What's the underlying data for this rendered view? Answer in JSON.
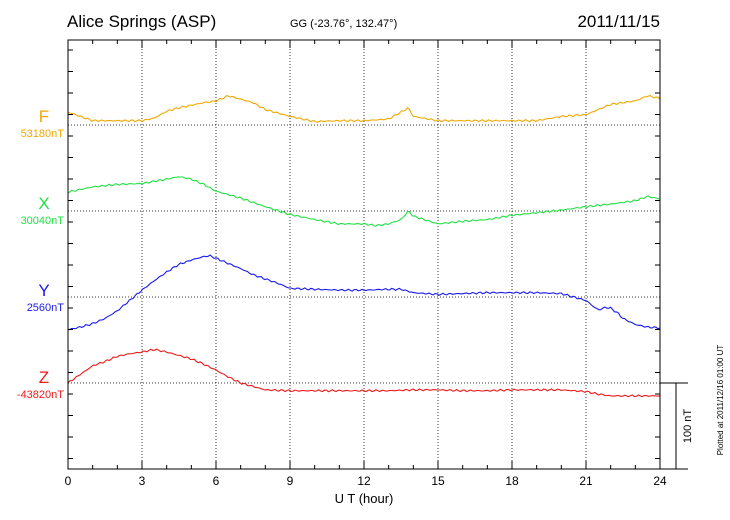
{
  "chart_data": {
    "type": "line",
    "title": "Alice Springs (ASP)",
    "subtitle": "GG (-23.76°, 132.47°)",
    "date": "2011/11/15",
    "xlabel": "U T (hour)",
    "xlim": [
      0,
      24
    ],
    "xticks": [
      "0",
      "3",
      "6",
      "9",
      "12",
      "15",
      "18",
      "21",
      "24"
    ],
    "grid": true,
    "scale_bar": {
      "label": "100 nT",
      "value_nT": 100
    },
    "footnote": "Plotted at 2011/12/16 01:00 UT",
    "series": [
      {
        "name": "F",
        "baseline_label": "53180nT",
        "baseline_nT": 53180,
        "color": "#f0a800",
        "x": [
          0,
          0.5,
          1,
          2,
          3,
          3.5,
          4,
          4.5,
          5,
          5.5,
          6,
          6.5,
          7,
          7.5,
          8,
          9,
          10,
          11,
          12,
          13,
          13.5,
          13.8,
          14,
          15,
          16,
          17,
          18,
          19,
          20,
          21,
          21.5,
          22,
          23,
          23.5,
          24
        ],
        "y": [
          53195,
          53190,
          53185,
          53185,
          53185,
          53188,
          53196,
          53200,
          53203,
          53206,
          53208,
          53214,
          53210,
          53206,
          53198,
          53190,
          53184,
          53185,
          53185,
          53187,
          53195,
          53200,
          53190,
          53185,
          53185,
          53185,
          53185,
          53185,
          53190,
          53192,
          53198,
          53204,
          53208,
          53214,
          53211
        ]
      },
      {
        "name": "X",
        "baseline_label": "30040nT",
        "baseline_nT": 30040,
        "color": "#22e044",
        "x": [
          0,
          0.5,
          1,
          2,
          3,
          4,
          4.5,
          5,
          5.5,
          6,
          7,
          8,
          9,
          10,
          11,
          12,
          12.5,
          13,
          13.5,
          13.8,
          14,
          15,
          16,
          17,
          18,
          19,
          20,
          21,
          22,
          23,
          23.5,
          24
        ],
        "y": [
          30062,
          30065,
          30068,
          30071,
          30072,
          30077,
          30080,
          30077,
          30071,
          30063,
          30055,
          30045,
          30036,
          30030,
          30025,
          30025,
          30023,
          30025,
          30030,
          30040,
          30034,
          30025,
          30028,
          30030,
          30035,
          30038,
          30041,
          30045,
          30048,
          30052,
          30057,
          30054
        ]
      },
      {
        "name": "Y",
        "baseline_label": "2560nT",
        "baseline_nT": 2560,
        "color": "#1a1aee",
        "x": [
          0,
          0.5,
          1,
          1.5,
          2,
          2.5,
          3,
          3.5,
          4,
          4.5,
          5,
          5.5,
          5.75,
          6,
          6.5,
          7,
          7.5,
          8,
          8.5,
          9,
          10,
          11,
          12,
          13,
          13.5,
          14,
          15,
          16,
          17,
          18,
          19,
          20,
          20.5,
          21,
          21.3,
          21.5,
          21.8,
          22,
          22.3,
          22.5,
          23,
          23.5,
          24
        ],
        "y": [
          2522,
          2525,
          2529,
          2535,
          2544,
          2556,
          2568,
          2579,
          2589,
          2598,
          2603,
          2607,
          2608,
          2605,
          2599,
          2593,
          2586,
          2581,
          2576,
          2570,
          2569,
          2568,
          2568,
          2569,
          2569,
          2565,
          2563,
          2564,
          2565,
          2565,
          2565,
          2564,
          2560,
          2556,
          2549,
          2545,
          2548,
          2547,
          2541,
          2535,
          2528,
          2525,
          2524
        ]
      },
      {
        "name": "Z",
        "baseline_label": "-43820nT",
        "baseline_nT": -43820,
        "color": "#ee1a1a",
        "x": [
          0,
          0.5,
          1,
          1.5,
          2,
          2.5,
          3,
          3.5,
          4,
          4.5,
          5,
          5.5,
          6,
          6.5,
          7,
          8,
          9,
          10,
          11,
          12,
          13,
          14,
          15,
          16,
          17,
          18,
          19,
          20,
          21,
          21.5,
          22,
          23,
          24
        ],
        "y": [
          -43820,
          -43810,
          -43800,
          -43795,
          -43789,
          -43786,
          -43784,
          -43781,
          -43784,
          -43788,
          -43792,
          -43798,
          -43805,
          -43813,
          -43820,
          -43828,
          -43829,
          -43829,
          -43829,
          -43829,
          -43829,
          -43828,
          -43828,
          -43829,
          -43829,
          -43828,
          -43828,
          -43828,
          -43830,
          -43833,
          -43835,
          -43835,
          -43835
        ]
      }
    ]
  }
}
